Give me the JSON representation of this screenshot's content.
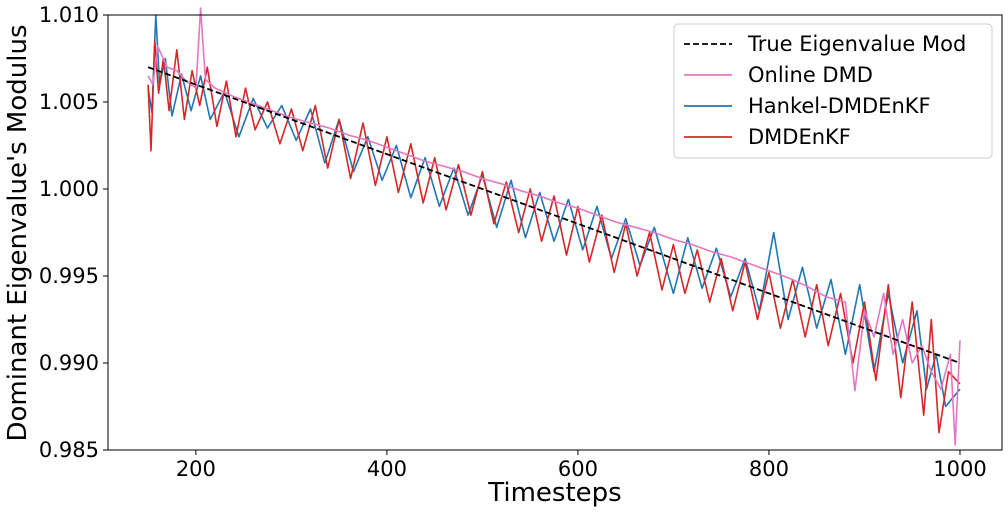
{
  "chart_data": {
    "type": "line",
    "xlabel": "Timesteps",
    "ylabel": "Dominant Eigenvalue's Modulus",
    "xlim": [
      108,
      1044
    ],
    "ylim": [
      0.985,
      1.01
    ],
    "xticks": [
      200,
      400,
      600,
      800,
      1000
    ],
    "yticks": [
      0.985,
      0.99,
      0.995,
      1.0,
      1.005,
      1.01
    ],
    "xtick_labels": [
      "200",
      "400",
      "600",
      "800",
      "1000"
    ],
    "ytick_labels": [
      "0.985",
      "0.990",
      "0.995",
      "1.000",
      "1.005",
      "1.010"
    ],
    "grid": false,
    "legend_position": "top-right",
    "series": [
      {
        "name": "True Eigenvalue Mod",
        "color": "#000000",
        "style": "dashed",
        "x": [
          150,
          1000
        ],
        "y": [
          1.007,
          0.99
        ]
      },
      {
        "name": "Online DMD",
        "color": "#e377c2",
        "style": "solid",
        "x": [
          150,
          155,
          160,
          170,
          180,
          190,
          200,
          205,
          210,
          220,
          240,
          260,
          280,
          300,
          320,
          340,
          360,
          380,
          400,
          420,
          440,
          460,
          480,
          500,
          520,
          540,
          560,
          580,
          600,
          620,
          640,
          660,
          680,
          700,
          720,
          740,
          760,
          780,
          800,
          820,
          840,
          860,
          880,
          890,
          900,
          910,
          920,
          930,
          940,
          950,
          960,
          970,
          980,
          990,
          995,
          1000
        ],
        "y": [
          1.0065,
          1.006,
          1.0082,
          1.007,
          1.0068,
          1.0062,
          1.0058,
          1.0104,
          1.0063,
          1.0058,
          1.0053,
          1.0049,
          1.0045,
          1.0041,
          1.0038,
          1.0035,
          1.0031,
          1.0028,
          1.0024,
          1.002,
          1.0016,
          1.0013,
          1.001,
          1.0006,
          1.0003,
          0.9999,
          0.9996,
          0.9992,
          0.9989,
          0.9985,
          0.9981,
          0.9978,
          0.9975,
          0.9971,
          0.9968,
          0.9964,
          0.9961,
          0.9957,
          0.9953,
          0.9949,
          0.9944,
          0.9938,
          0.9935,
          0.9884,
          0.993,
          0.9915,
          0.994,
          0.9905,
          0.9925,
          0.99,
          0.991,
          0.9895,
          0.9885,
          0.9905,
          0.9853,
          0.9913
        ]
      },
      {
        "name": "Hankel-DMDEnKF",
        "color": "#1f77b4",
        "style": "solid",
        "x": [
          150,
          154,
          158,
          162,
          168,
          175,
          185,
          195,
          205,
          215,
          230,
          245,
          260,
          275,
          290,
          305,
          320,
          335,
          350,
          365,
          380,
          395,
          410,
          425,
          440,
          455,
          470,
          485,
          500,
          515,
          530,
          545,
          560,
          575,
          590,
          605,
          620,
          635,
          650,
          665,
          680,
          700,
          715,
          730,
          745,
          760,
          775,
          790,
          805,
          820,
          835,
          850,
          865,
          880,
          895,
          910,
          925,
          940,
          955,
          965,
          975,
          985,
          1000
        ],
        "y": [
          1.0058,
          1.0044,
          1.01,
          1.006,
          1.0075,
          1.0042,
          1.0066,
          1.0045,
          1.0065,
          1.004,
          1.0056,
          1.003,
          1.0052,
          1.0035,
          1.0048,
          1.0028,
          1.0046,
          1.0015,
          1.004,
          1.001,
          1.003,
          1.0005,
          1.0025,
          0.9995,
          1.0018,
          0.999,
          1.0012,
          0.9985,
          1.0008,
          0.9978,
          1.0005,
          0.9972,
          0.9998,
          0.997,
          0.9994,
          0.9965,
          0.999,
          0.996,
          0.9983,
          0.9956,
          0.9978,
          0.994,
          0.9972,
          0.9943,
          0.9966,
          0.9938,
          0.996,
          0.993,
          0.9975,
          0.9925,
          0.9955,
          0.992,
          0.9948,
          0.9905,
          0.9945,
          0.9895,
          0.994,
          0.99,
          0.993,
          0.9885,
          0.9905,
          0.9875,
          0.9885
        ]
      },
      {
        "name": "DMDEnKF",
        "color": "#d62728",
        "style": "solid",
        "x": [
          150,
          153,
          157,
          161,
          166,
          172,
          180,
          188,
          196,
          204,
          212,
          222,
          232,
          242,
          252,
          262,
          275,
          288,
          300,
          312,
          325,
          338,
          350,
          362,
          375,
          388,
          400,
          412,
          425,
          438,
          450,
          462,
          475,
          488,
          500,
          512,
          525,
          538,
          550,
          562,
          575,
          588,
          600,
          612,
          625,
          638,
          650,
          662,
          675,
          688,
          700,
          712,
          725,
          738,
          750,
          762,
          775,
          788,
          800,
          812,
          825,
          838,
          850,
          862,
          875,
          888,
          900,
          912,
          925,
          938,
          950,
          962,
          970,
          978,
          988,
          1000
        ],
        "y": [
          1.006,
          1.0022,
          1.0085,
          1.0055,
          1.0075,
          1.0045,
          1.008,
          1.004,
          1.0068,
          1.0048,
          1.007,
          1.0036,
          1.0062,
          1.003,
          1.0058,
          1.0034,
          1.005,
          1.0026,
          1.0046,
          1.0022,
          1.0048,
          1.0012,
          1.004,
          1.0006,
          1.0038,
          1.0002,
          1.003,
          0.9998,
          1.0026,
          0.9992,
          1.0018,
          0.9988,
          1.0014,
          0.9985,
          1.001,
          0.998,
          1.0004,
          0.9975,
          1.0,
          0.997,
          0.9996,
          0.9962,
          0.999,
          0.9958,
          0.9985,
          0.9952,
          0.998,
          0.995,
          0.9975,
          0.9942,
          0.9968,
          0.994,
          0.9965,
          0.9935,
          0.996,
          0.993,
          0.9958,
          0.9925,
          0.9952,
          0.992,
          0.9948,
          0.9915,
          0.9945,
          0.991,
          0.994,
          0.99,
          0.9935,
          0.989,
          0.9945,
          0.988,
          0.9935,
          0.987,
          0.9925,
          0.986,
          0.9895,
          0.9888
        ]
      }
    ]
  }
}
